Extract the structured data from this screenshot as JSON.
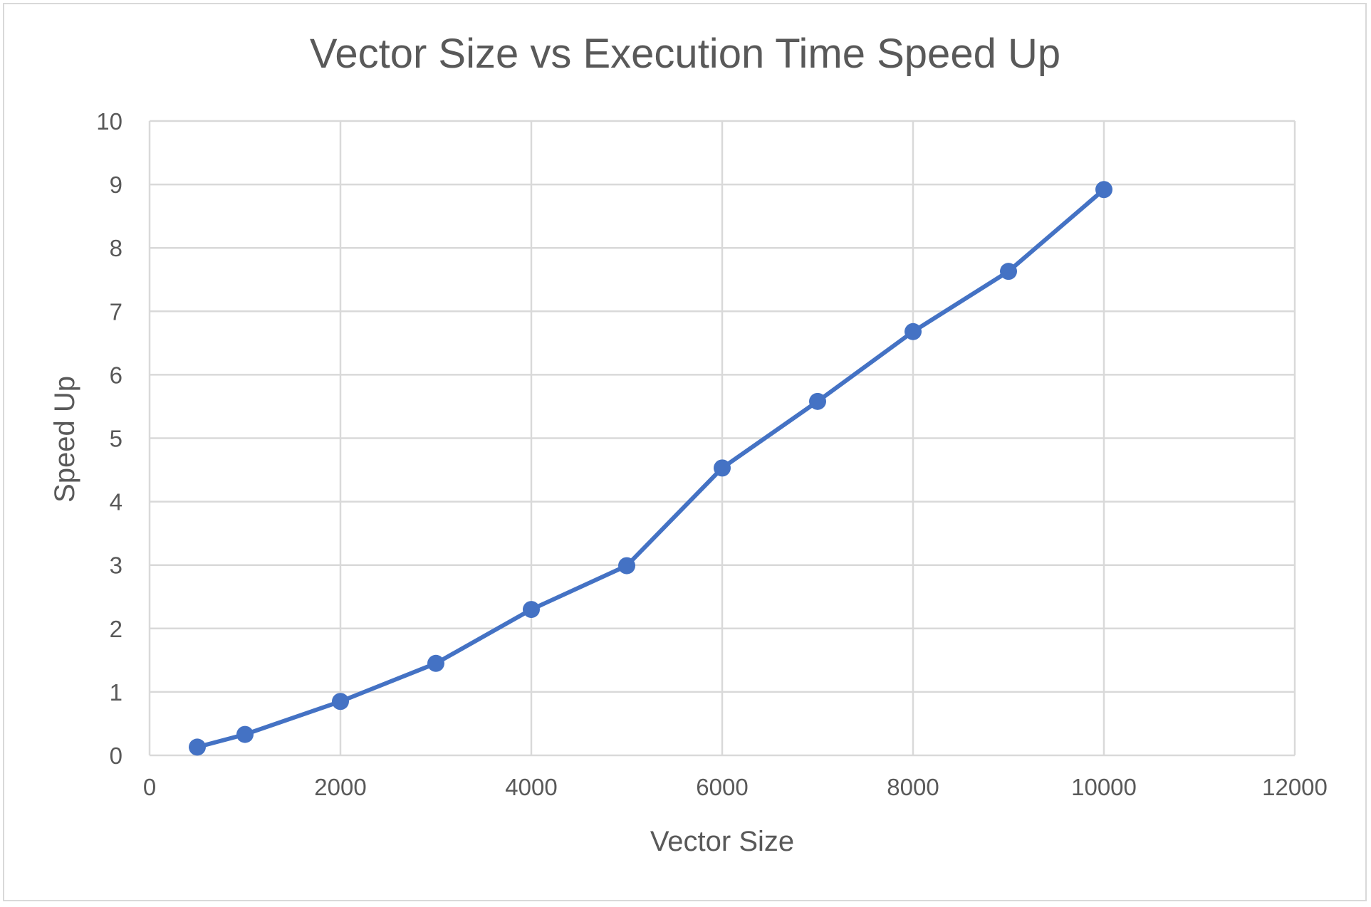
{
  "chart_data": {
    "type": "line",
    "title": "Vector Size vs Execution Time Speed Up",
    "xlabel": "Vector Size",
    "ylabel": "Speed Up",
    "xlim": [
      0,
      12000
    ],
    "ylim": [
      0,
      10
    ],
    "xticks": [
      0,
      2000,
      4000,
      6000,
      8000,
      10000,
      12000
    ],
    "yticks": [
      0,
      1,
      2,
      3,
      4,
      5,
      6,
      7,
      8,
      9,
      10
    ],
    "grid": true,
    "legend": "none",
    "colors": {
      "series": "#4472c4",
      "grid": "#d9d9d9",
      "text": "#595959"
    },
    "series": [
      {
        "x": [
          500,
          1000,
          2000,
          3000,
          4000,
          5000,
          6000,
          7000,
          8000,
          9000,
          10000
        ],
        "y": [
          0.13,
          0.33,
          0.85,
          1.45,
          2.3,
          2.99,
          4.53,
          5.58,
          6.68,
          7.63,
          8.92
        ]
      }
    ]
  }
}
